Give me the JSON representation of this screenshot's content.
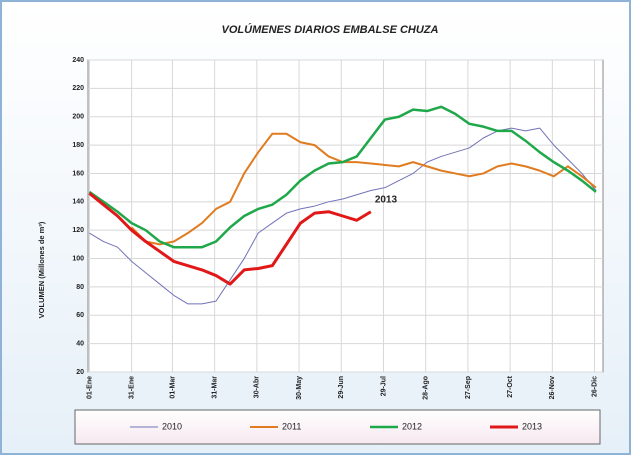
{
  "chart_data": {
    "type": "line",
    "title": "VOLÚMENES DIARIOS EMBALSE  CHUZA",
    "y_label": "VOLUMEN (Millones de m³)",
    "annotation": "2013",
    "grid": true,
    "xlim": [
      0,
      366
    ],
    "ylim": [
      20,
      240
    ],
    "yticks": [
      20,
      40,
      60,
      80,
      100,
      120,
      140,
      160,
      180,
      200,
      220,
      240
    ],
    "xticks": [
      {
        "value": 1,
        "label": "01-Ene"
      },
      {
        "value": 31,
        "label": "31-Ene"
      },
      {
        "value": 60,
        "label": "01-Mar"
      },
      {
        "value": 90,
        "label": "31-Mar"
      },
      {
        "value": 120,
        "label": "30-Abr"
      },
      {
        "value": 150,
        "label": "30-May"
      },
      {
        "value": 180,
        "label": "29-Jun"
      },
      {
        "value": 210,
        "label": "29-Jul"
      },
      {
        "value": 240,
        "label": "28-Ago"
      },
      {
        "value": 270,
        "label": "27-Sep"
      },
      {
        "value": 300,
        "label": "27-Oct"
      },
      {
        "value": 330,
        "label": "26-Nov"
      },
      {
        "value": 360,
        "label": "26-Dic"
      }
    ],
    "x": [
      1,
      11,
      21,
      31,
      41,
      51,
      61,
      71,
      81,
      91,
      101,
      111,
      121,
      131,
      141,
      151,
      161,
      171,
      181,
      191,
      201,
      211,
      221,
      231,
      241,
      251,
      261,
      271,
      281,
      291,
      301,
      311,
      321,
      331,
      341,
      351,
      361
    ],
    "series": [
      {
        "name": "2010",
        "color": "#7272b8",
        "width": 1,
        "values": [
          118,
          112,
          108,
          98,
          90,
          82,
          74,
          68,
          68,
          70,
          85,
          100,
          118,
          125,
          132,
          135,
          137,
          140,
          142,
          145,
          148,
          150,
          155,
          160,
          168,
          172,
          175,
          178,
          185,
          190,
          192,
          190,
          192,
          180,
          170,
          160,
          148
        ]
      },
      {
        "name": "2011",
        "color": "#e07b20",
        "width": 2,
        "values": [
          null,
          null,
          null,
          122,
          112,
          110,
          112,
          118,
          125,
          135,
          140,
          160,
          175,
          188,
          188,
          182,
          180,
          172,
          168,
          168,
          167,
          166,
          165,
          168,
          165,
          162,
          160,
          158,
          160,
          165,
          167,
          165,
          162,
          158,
          165,
          158,
          150
        ]
      },
      {
        "name": "2012",
        "color": "#1fa84a",
        "width": 2.5,
        "values": [
          147,
          140,
          133,
          125,
          120,
          112,
          108,
          108,
          108,
          112,
          122,
          130,
          135,
          138,
          145,
          155,
          162,
          167,
          168,
          172,
          185,
          198,
          200,
          205,
          204,
          207,
          202,
          195,
          193,
          190,
          190,
          183,
          175,
          168,
          162,
          155,
          147
        ]
      },
      {
        "name": "2013",
        "color": "#e01818",
        "width": 3,
        "values": [
          146,
          138,
          130,
          120,
          112,
          105,
          98,
          95,
          92,
          88,
          82,
          92,
          93,
          95,
          110,
          125,
          132,
          133,
          130,
          127,
          133,
          null,
          null,
          null,
          null,
          null,
          null,
          null,
          null,
          null,
          null,
          null,
          null,
          null,
          null,
          null,
          null
        ]
      }
    ]
  }
}
